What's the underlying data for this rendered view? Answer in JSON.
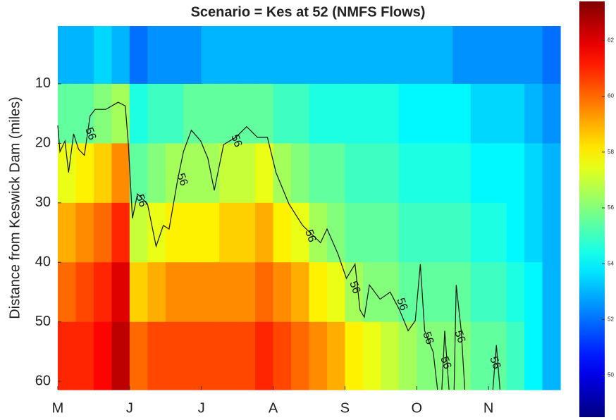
{
  "chart_data": {
    "type": "heatmap",
    "title": "Scenario = Kes at 52 (NMFS Flows)",
    "ylabel": "Distance from Keswick Dam (miles)",
    "xlim": [
      0,
      7
    ],
    "xticks": [
      {
        "value": 0,
        "label": "M"
      },
      {
        "value": 1,
        "label": "J"
      },
      {
        "value": 2,
        "label": "J"
      },
      {
        "value": 3,
        "label": "A"
      },
      {
        "value": 4,
        "label": "S"
      },
      {
        "value": 5,
        "label": "O"
      },
      {
        "value": 6,
        "label": "N"
      }
    ],
    "ylim": [
      0.3,
      61.4
    ],
    "y_reversed": true,
    "yticks": [
      10,
      20,
      30,
      40,
      50,
      60
    ],
    "colormap": "jet",
    "clim": [
      48.5,
      63.4
    ],
    "cticks": [
      50,
      52,
      54,
      56,
      58,
      60,
      62
    ],
    "time": [
      0.125,
      0.375,
      0.625,
      0.875,
      1.125,
      1.375,
      1.625,
      1.875,
      2.125,
      2.375,
      2.625,
      2.875,
      3.125,
      3.375,
      3.625,
      3.875,
      4.125,
      4.375,
      4.625,
      4.875,
      5.125,
      5.375,
      5.625,
      5.875,
      6.125,
      6.375,
      6.625,
      6.875
    ],
    "distance": [
      5,
      15,
      25,
      35,
      45,
      55
    ],
    "values": [
      [
        53,
        55.5,
        57.5,
        59,
        60,
        61
      ],
      [
        53,
        55.5,
        58,
        59.5,
        60.5,
        61
      ],
      [
        53.5,
        56,
        58.5,
        60,
        61,
        61.5
      ],
      [
        53,
        56.5,
        59.5,
        61,
        62,
        62.5
      ],
      [
        52,
        54.5,
        55.5,
        57,
        58.5,
        60
      ],
      [
        52.5,
        55,
        56,
        57.5,
        59,
        60.5
      ],
      [
        52.5,
        55,
        56.5,
        58,
        59.5,
        60.5
      ],
      [
        52.5,
        55.5,
        56.5,
        58,
        59.5,
        60.5
      ],
      [
        53,
        55.5,
        56.5,
        58,
        59.5,
        60.5
      ],
      [
        53,
        55.5,
        57,
        58.5,
        59.5,
        60.5
      ],
      [
        53,
        55.5,
        57,
        58.5,
        59.5,
        60.5
      ],
      [
        53,
        55.5,
        57.5,
        59,
        60,
        61
      ],
      [
        53,
        55,
        56.5,
        58,
        59.5,
        60.5
      ],
      [
        53,
        55,
        56,
        57.5,
        59,
        60
      ],
      [
        53,
        54.5,
        55.5,
        56.5,
        58,
        59.5
      ],
      [
        53,
        54.5,
        55.5,
        56,
        57.5,
        59
      ],
      [
        53,
        54.5,
        55,
        55.5,
        56.5,
        58
      ],
      [
        53,
        54.5,
        55,
        55.5,
        56,
        57.5
      ],
      [
        53,
        54.5,
        55,
        55.5,
        56,
        57
      ],
      [
        53,
        54,
        54.5,
        55,
        55.5,
        56.5
      ],
      [
        53,
        54,
        54.5,
        55,
        55.5,
        56
      ],
      [
        53,
        54,
        54.5,
        55,
        55.5,
        56
      ],
      [
        52.5,
        54,
        54.5,
        55,
        55.5,
        56
      ],
      [
        52.5,
        53.5,
        54,
        54.5,
        55,
        55.5
      ],
      [
        52.5,
        53.5,
        54,
        54.5,
        55,
        55.5
      ],
      [
        52.5,
        53.5,
        54,
        54,
        54.5,
        55
      ],
      [
        52.5,
        53,
        53.5,
        53.5,
        54,
        54
      ],
      [
        52,
        52.5,
        53,
        53,
        53,
        53
      ]
    ],
    "contour": {
      "level": 56,
      "x": [
        0,
        0.03,
        0.1,
        0.15,
        0.22,
        0.29,
        0.37,
        0.45,
        0.52,
        0.67,
        0.84,
        0.94,
        0.98,
        1.04,
        1.11,
        1.25,
        1.37,
        1.47,
        1.55,
        1.67,
        1.75,
        1.86,
        1.99,
        2.09,
        2.18,
        2.31,
        2.48,
        2.63,
        2.78,
        2.92,
        3.04,
        3.22,
        3.41,
        3.66,
        3.75,
        3.9,
        4.02,
        4.14,
        4.21,
        4.27,
        4.34,
        4.49,
        4.63,
        4.76,
        4.88,
        4.98,
        5.05,
        5.11,
        5.23,
        5.29,
        null,
        5.35,
        5.39,
        5.45,
        null,
        5.52,
        5.55,
        5.62,
        5.67,
        null,
        6.06,
        6.11,
        6.16
      ],
      "y": [
        17,
        21.4,
        19.6,
        24.9,
        18.4,
        21,
        22,
        15.4,
        14.3,
        14.3,
        13.1,
        13.7,
        19.6,
        32.6,
        28.5,
        30.2,
        37.3,
        33.8,
        34.4,
        26.1,
        21.4,
        17.8,
        19.6,
        22.5,
        27.9,
        20.2,
        19,
        17.2,
        19,
        19,
        24.9,
        30.2,
        33.8,
        36.7,
        34.4,
        38.5,
        42.7,
        40.3,
        48,
        49.2,
        43.8,
        46.2,
        45,
        48,
        51.5,
        49.8,
        40.3,
        51.5,
        55.1,
        61.4,
        null,
        61.4,
        51.5,
        61.4,
        null,
        61.4,
        43.8,
        51.5,
        61.4,
        null,
        61.4,
        53.9,
        61.4
      ]
    }
  }
}
